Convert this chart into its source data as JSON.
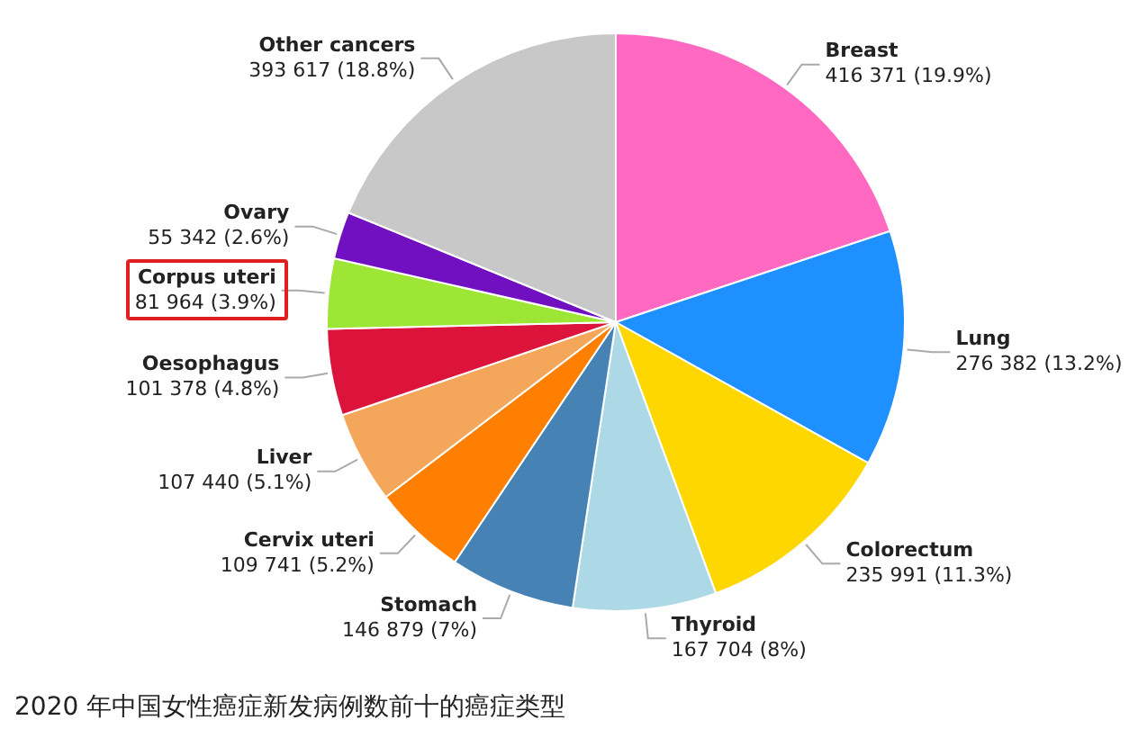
{
  "chart_data": {
    "type": "pie",
    "categories": [
      "Breast",
      "Lung",
      "Colorectum",
      "Thyroid",
      "Stomach",
      "Cervix uteri",
      "Liver",
      "Oesophagus",
      "Corpus uteri",
      "Ovary",
      "Other cancers"
    ],
    "values": [
      416371,
      276382,
      235991,
      167704,
      146879,
      109741,
      107440,
      101378,
      81964,
      55342,
      393617
    ],
    "value_labels": [
      "416 371 (19.9%)",
      "276 382 (13.2%)",
      "235 991 (11.3%)",
      "167 704 (8%)",
      "146 879 (7%)",
      "109 741 (5.2%)",
      "107 440 (5.1%)",
      "101 378 (4.8%)",
      "81 964 (3.9%)",
      "55 342 (2.6%)",
      "393 617 (18.8%)"
    ],
    "colors": [
      "#ff69c2",
      "#1e90ff",
      "#ffd700",
      "#add8e6",
      "#4682b4",
      "#ff7f00",
      "#f4a65a",
      "#dc143c",
      "#9de636",
      "#7010c0",
      "#c8c8c8"
    ],
    "annotations": [
      "2020 年中国女性癌症新发病例数前十的癌症类型"
    ],
    "legend": false
  }
}
